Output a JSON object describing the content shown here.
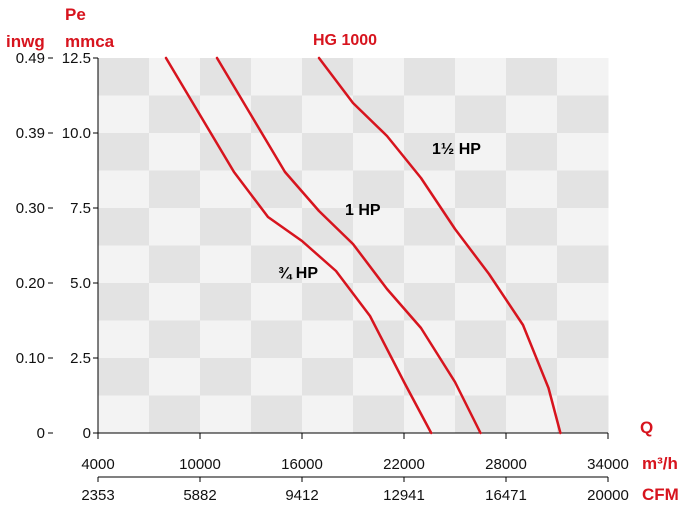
{
  "chart_data": {
    "type": "line",
    "title": "HG 1000",
    "left_axis": {
      "inwg_label": "inwg",
      "pe_label": "Pe",
      "mmca_label": "mmca",
      "mmca_ticks": [
        "0",
        "2.5",
        "5.0",
        "7.5",
        "10.0",
        "12.5"
      ],
      "inwg_ticks": [
        "0",
        "0.10",
        "0.20",
        "0.30",
        "0.39",
        "0.49"
      ]
    },
    "bottom_axis": {
      "q_label": "Q",
      "m3h_label": "m³/h",
      "cfm_label": "CFM",
      "m3h_ticks": [
        "4000",
        "10000",
        "16000",
        "22000",
        "28000",
        "34000"
      ],
      "cfm_ticks": [
        "2353",
        "5882",
        "9412",
        "12941",
        "16471",
        "20000"
      ]
    },
    "xlim": [
      4000,
      34000
    ],
    "ylim": [
      0,
      12.5
    ],
    "grid": true,
    "series": [
      {
        "name": "¾ HP",
        "color": "#d7141e",
        "points": [
          [
            8000,
            12.5
          ],
          [
            10000,
            10.6
          ],
          [
            12000,
            8.7
          ],
          [
            14000,
            7.2
          ],
          [
            16000,
            6.4
          ],
          [
            18000,
            5.4
          ],
          [
            20000,
            3.9
          ],
          [
            22000,
            1.7
          ],
          [
            23600,
            0
          ]
        ]
      },
      {
        "name": "1 HP",
        "color": "#d7141e",
        "points": [
          [
            11000,
            12.5
          ],
          [
            13000,
            10.6
          ],
          [
            15000,
            8.7
          ],
          [
            17000,
            7.4
          ],
          [
            19000,
            6.3
          ],
          [
            21000,
            4.8
          ],
          [
            23000,
            3.5
          ],
          [
            25000,
            1.7
          ],
          [
            26500,
            0
          ]
        ]
      },
      {
        "name": "1½ HP",
        "color": "#d7141e",
        "points": [
          [
            17000,
            12.5
          ],
          [
            19000,
            11.0
          ],
          [
            21000,
            9.9
          ],
          [
            23000,
            8.5
          ],
          [
            25000,
            6.8
          ],
          [
            27000,
            5.3
          ],
          [
            29000,
            3.6
          ],
          [
            30500,
            1.5
          ],
          [
            31200,
            0
          ]
        ]
      }
    ]
  }
}
